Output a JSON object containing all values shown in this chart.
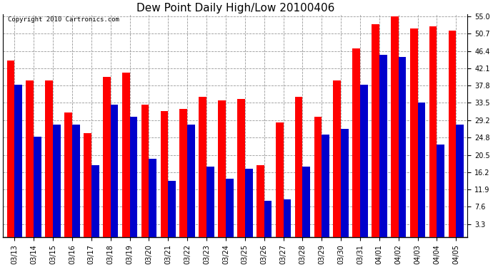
{
  "title": "Dew Point Daily High/Low 20100406",
  "copyright": "Copyright 2010 Cartronics.com",
  "categories": [
    "03/13",
    "03/14",
    "03/15",
    "03/16",
    "03/17",
    "03/18",
    "03/19",
    "03/20",
    "03/21",
    "03/22",
    "03/23",
    "03/24",
    "03/25",
    "03/26",
    "03/27",
    "03/28",
    "03/29",
    "03/30",
    "03/31",
    "04/01",
    "04/02",
    "04/03",
    "04/04",
    "04/05"
  ],
  "highs": [
    44.0,
    39.0,
    39.0,
    31.0,
    26.0,
    40.0,
    41.0,
    33.0,
    31.5,
    32.0,
    35.0,
    34.0,
    34.5,
    18.0,
    28.5,
    35.0,
    30.0,
    39.0,
    47.0,
    53.0,
    55.0,
    52.0,
    52.5,
    51.5
  ],
  "lows": [
    38.0,
    25.0,
    28.0,
    28.0,
    18.0,
    33.0,
    30.0,
    19.5,
    14.0,
    28.0,
    17.5,
    14.5,
    17.0,
    9.0,
    9.5,
    17.5,
    25.5,
    27.0,
    38.0,
    45.5,
    45.0,
    33.5,
    23.0,
    28.0
  ],
  "high_color": "#ff0000",
  "low_color": "#0000cc",
  "bg_color": "#ffffff",
  "plot_bg_color": "#ffffff",
  "grid_color": "#999999",
  "yticks": [
    3.3,
    7.6,
    11.9,
    16.2,
    20.5,
    24.8,
    29.2,
    33.5,
    37.8,
    42.1,
    46.4,
    50.7,
    55.0
  ],
  "ymin": 3.3,
  "ymax": 55.0,
  "bar_width": 0.4,
  "title_fontsize": 11,
  "tick_fontsize": 7,
  "copyright_fontsize": 6.5
}
